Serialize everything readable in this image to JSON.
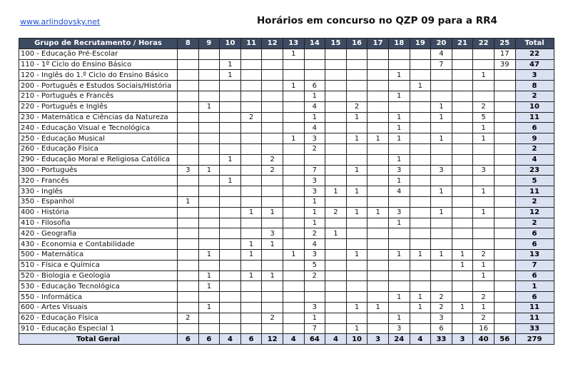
{
  "header": {
    "link": "www.arlindovsky.net",
    "title": "Horários em concurso no QZP 09 para a RR4"
  },
  "colors": {
    "header_bg": "#3d4a61",
    "total_bg": "#d9e1f2",
    "link": "#1f4fd1"
  },
  "table": {
    "columns": [
      "Grupo de Recrutamento / Horas",
      "8",
      "9",
      "10",
      "11",
      "12",
      "13",
      "14",
      "15",
      "16",
      "17",
      "18",
      "19",
      "20",
      "21",
      "22",
      "25",
      "Total"
    ],
    "rows": [
      [
        "100 - Educação Pré-Escolar",
        "",
        "",
        "",
        "",
        "",
        "1",
        "",
        "",
        "",
        "",
        "",
        "",
        "4",
        "",
        "",
        "17",
        "22"
      ],
      [
        "110 - 1º Ciclo do Ensino Básico",
        "",
        "",
        "1",
        "",
        "",
        "",
        "",
        "",
        "",
        "",
        "",
        "",
        "7",
        "",
        "",
        "39",
        "47"
      ],
      [
        "120 - Inglês do 1.º Ciclo do Ensino Básico",
        "",
        "",
        "1",
        "",
        "",
        "",
        "",
        "",
        "",
        "",
        "1",
        "",
        "",
        "",
        "1",
        "",
        "3"
      ],
      [
        "200 - Português e Estudos Sociais/História",
        "",
        "",
        "",
        "",
        "",
        "1",
        "6",
        "",
        "",
        "",
        "",
        "1",
        "",
        "",
        "",
        "",
        "8"
      ],
      [
        "210 - Português e Francês",
        "",
        "",
        "",
        "",
        "",
        "",
        "1",
        "",
        "",
        "",
        "1",
        "",
        "",
        "",
        "",
        "",
        "2"
      ],
      [
        "220 - Português e Inglês",
        "",
        "1",
        "",
        "",
        "",
        "",
        "4",
        "",
        "2",
        "",
        "",
        "",
        "1",
        "",
        "2",
        "",
        "10"
      ],
      [
        "230 - Matemática e Ciências da Natureza",
        "",
        "",
        "",
        "2",
        "",
        "",
        "1",
        "",
        "1",
        "",
        "1",
        "",
        "1",
        "",
        "5",
        "",
        "11"
      ],
      [
        "240 - Educação Visual e Tecnológica",
        "",
        "",
        "",
        "",
        "",
        "",
        "4",
        "",
        "",
        "",
        "1",
        "",
        "",
        "",
        "1",
        "",
        "6"
      ],
      [
        "250 - Educação Musical",
        "",
        "",
        "",
        "",
        "",
        "1",
        "3",
        "",
        "1",
        "1",
        "1",
        "",
        "1",
        "",
        "1",
        "",
        "9"
      ],
      [
        "260 - Educação Física",
        "",
        "",
        "",
        "",
        "",
        "",
        "2",
        "",
        "",
        "",
        "",
        "",
        "",
        "",
        "",
        "",
        "2"
      ],
      [
        "290 - Educação Moral e Religiosa Católica",
        "",
        "",
        "1",
        "",
        "2",
        "",
        "",
        "",
        "",
        "",
        "1",
        "",
        "",
        "",
        "",
        "",
        "4"
      ],
      [
        "300 - Português",
        "3",
        "1",
        "",
        "",
        "2",
        "",
        "7",
        "",
        "1",
        "",
        "3",
        "",
        "3",
        "",
        "3",
        "",
        "23"
      ],
      [
        "320 - Francês",
        "",
        "",
        "1",
        "",
        "",
        "",
        "3",
        "",
        "",
        "",
        "1",
        "",
        "",
        "",
        "",
        "",
        "5"
      ],
      [
        "330 - Inglês",
        "",
        "",
        "",
        "",
        "",
        "",
        "3",
        "1",
        "1",
        "",
        "4",
        "",
        "1",
        "",
        "1",
        "",
        "11"
      ],
      [
        "350 - Espanhol",
        "1",
        "",
        "",
        "",
        "",
        "",
        "1",
        "",
        "",
        "",
        "",
        "",
        "",
        "",
        "",
        "",
        "2"
      ],
      [
        "400 - História",
        "",
        "",
        "",
        "1",
        "1",
        "",
        "1",
        "2",
        "1",
        "1",
        "3",
        "",
        "1",
        "",
        "1",
        "",
        "12"
      ],
      [
        "410 - Filosofia",
        "",
        "",
        "",
        "",
        "",
        "",
        "1",
        "",
        "",
        "",
        "1",
        "",
        "",
        "",
        "",
        "",
        "2"
      ],
      [
        "420 - Geografia",
        "",
        "",
        "",
        "",
        "3",
        "",
        "2",
        "1",
        "",
        "",
        "",
        "",
        "",
        "",
        "",
        "",
        "6"
      ],
      [
        "430 - Economia e Contabilidade",
        "",
        "",
        "",
        "1",
        "1",
        "",
        "4",
        "",
        "",
        "",
        "",
        "",
        "",
        "",
        "",
        "",
        "6"
      ],
      [
        "500 - Matemática",
        "",
        "1",
        "",
        "1",
        "",
        "1",
        "3",
        "",
        "1",
        "",
        "1",
        "1",
        "1",
        "1",
        "2",
        "",
        "13"
      ],
      [
        "510 - Física e Química",
        "",
        "",
        "",
        "",
        "",
        "",
        "5",
        "",
        "",
        "",
        "",
        "",
        "",
        "1",
        "1",
        "",
        "7"
      ],
      [
        "520 - Biologia e Geologia",
        "",
        "1",
        "",
        "1",
        "1",
        "",
        "2",
        "",
        "",
        "",
        "",
        "",
        "",
        "",
        "1",
        "",
        "6"
      ],
      [
        "530 - Educação Tecnológica",
        "",
        "1",
        "",
        "",
        "",
        "",
        "",
        "",
        "",
        "",
        "",
        "",
        "",
        "",
        "",
        "",
        "1"
      ],
      [
        "550 - Informática",
        "",
        "",
        "",
        "",
        "",
        "",
        "",
        "",
        "",
        "",
        "1",
        "1",
        "2",
        "",
        "2",
        "",
        "6"
      ],
      [
        "600 - Artes Visuais",
        "",
        "1",
        "",
        "",
        "",
        "",
        "3",
        "",
        "1",
        "1",
        "",
        "1",
        "2",
        "1",
        "1",
        "",
        "11"
      ],
      [
        "620 - Educação Física",
        "2",
        "",
        "",
        "",
        "2",
        "",
        "1",
        "",
        "",
        "",
        "1",
        "",
        "3",
        "",
        "2",
        "",
        "11"
      ],
      [
        "910 - Educação Especial 1",
        "",
        "",
        "",
        "",
        "",
        "",
        "7",
        "",
        "1",
        "",
        "3",
        "",
        "6",
        "",
        "16",
        "",
        "33"
      ]
    ],
    "total_row": [
      "Total Geral",
      "6",
      "6",
      "4",
      "6",
      "12",
      "4",
      "64",
      "4",
      "10",
      "3",
      "24",
      "4",
      "33",
      "3",
      "40",
      "56",
      "279"
    ]
  }
}
